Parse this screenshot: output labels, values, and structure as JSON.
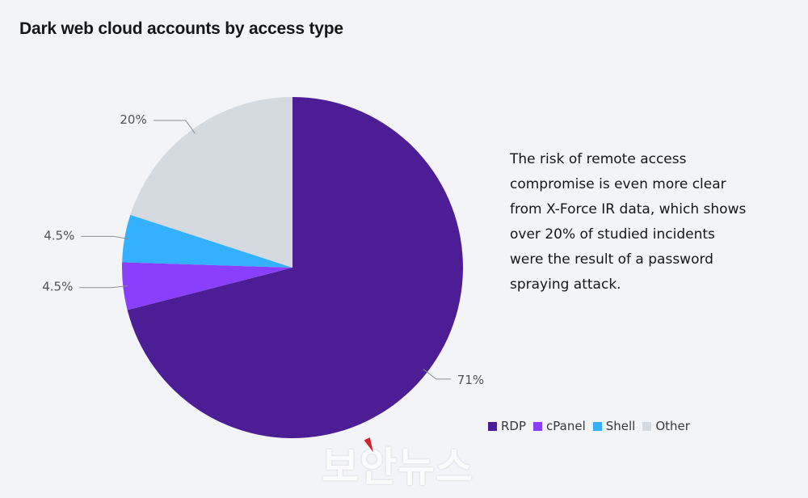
{
  "chart_data": {
    "type": "pie",
    "title": "Dark web cloud accounts by access type",
    "slices": [
      {
        "label": "RDP",
        "value": 71,
        "display": "71%",
        "color": "#4c1d95"
      },
      {
        "label": "cPanel",
        "value": 4.5,
        "display": "4.5%",
        "color": "#8a3ffc"
      },
      {
        "label": "Shell",
        "value": 4.5,
        "display": "4.5%",
        "color": "#33b1ff"
      },
      {
        "label": "Other",
        "value": 20,
        "display": "20%",
        "color": "#d5d9e0"
      }
    ],
    "legend_position": "bottom-right"
  },
  "note": "The risk of remote access compromise is even more clear from X-Force IR data, which shows over 20% of studied incidents were the result of a password spraying attack.",
  "watermark": "보안뉴스"
}
